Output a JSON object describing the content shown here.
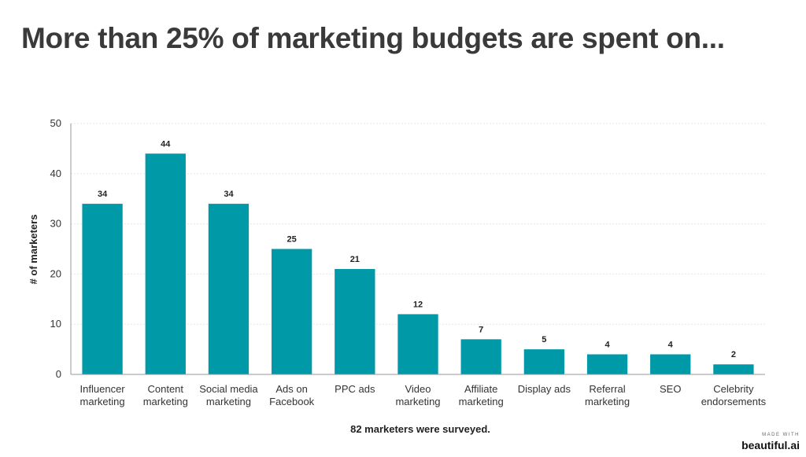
{
  "title": "More than 25% of marketing budgets are spent on...",
  "footnote": "82 marketers were surveyed.",
  "brand": {
    "made_with": "MADE WITH",
    "name": "beautiful.ai"
  },
  "colors": {
    "bar": "#0099a8",
    "grid": "#e6e6e6",
    "axis": "#999999"
  },
  "chart_data": {
    "type": "bar",
    "categories": [
      [
        "Influencer",
        "marketing"
      ],
      [
        "Content",
        "marketing"
      ],
      [
        "Social media",
        "marketing"
      ],
      [
        "Ads on",
        "Facebook"
      ],
      [
        "PPC ads"
      ],
      [
        "Video",
        "marketing"
      ],
      [
        "Affiliate",
        "marketing"
      ],
      [
        "Display ads"
      ],
      [
        "Referral",
        "marketing"
      ],
      [
        "SEO"
      ],
      [
        "Celebrity",
        "endorsements"
      ]
    ],
    "values": [
      34,
      44,
      34,
      25,
      21,
      12,
      7,
      5,
      4,
      4,
      2
    ],
    "ylabel": "# of marketers",
    "xlabel": "",
    "ylim": [
      0,
      50
    ],
    "yticks": [
      0,
      10,
      20,
      30,
      40,
      50
    ],
    "grid": true,
    "data_labels": true
  }
}
